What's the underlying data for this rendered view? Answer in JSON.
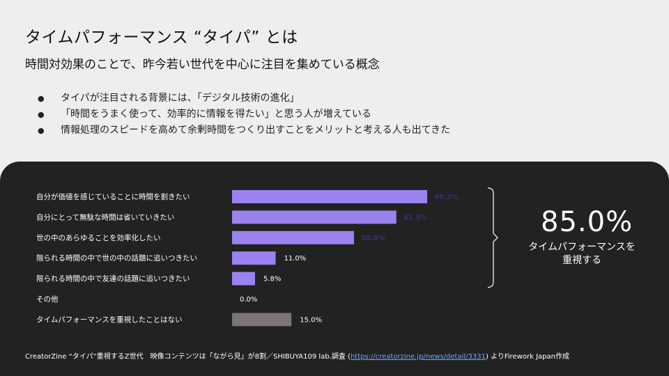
{
  "slide": {
    "title": "タイムパフォーマンス “タイパ” とは",
    "subtitle": "時間対効果のことで、昨今若い世代を中心に注目を集めている概念",
    "bullets": [
      "タイパが注目される背景には、「デジタル技術の進化」",
      "「時間をうまく使って、効率的に情報を得たい」と思う人が増えている",
      "情報処理のスピードを高めて余剰時間をつくり出すことをメリットと考える人も出てきた"
    ]
  },
  "highlight": {
    "value": "85.0%",
    "caption_line1": "タイムパフォーマンスを",
    "caption_line2": "重視する"
  },
  "source": {
    "prefix": "CreatorZine “タイパ”重視するZ世代　映像コンテンツは「ながら見」が8割／SHIBUYA109 lab.調査 (",
    "link": "https://creatorzine.jp/news/detail/3331",
    "suffix": ") よりFirework Japan作成"
  },
  "colors": {
    "bar_primary": "#9b82f0",
    "bar_other": "#7b7575",
    "panel_bg": "#222222",
    "label_inside": "#3a2f6e",
    "label_outside": "#ffffff"
  },
  "chart_data": {
    "type": "bar",
    "orientation": "horizontal",
    "categories": [
      "自分が価値を感じていることに時間を割きたい",
      "自分にとって無駄な時間は省いていきたい",
      "世の中のあらゆることを効率化したい",
      "限られる時間の中で世の中の話題に追いつきたい",
      "限られる時間の中で友達の話題に追いつきたい",
      "その他",
      "タイムパフォーマンスを重視したことはない"
    ],
    "values": [
      49.3,
      41.5,
      30.8,
      11.0,
      5.8,
      0.0,
      15.0
    ],
    "value_labels": [
      "49.3%",
      "41.5%",
      "30.8%",
      "11.0%",
      "5.8%",
      "0.0%",
      "15.0%"
    ],
    "xlim": [
      0,
      50
    ],
    "grid": false,
    "legend": "none"
  }
}
